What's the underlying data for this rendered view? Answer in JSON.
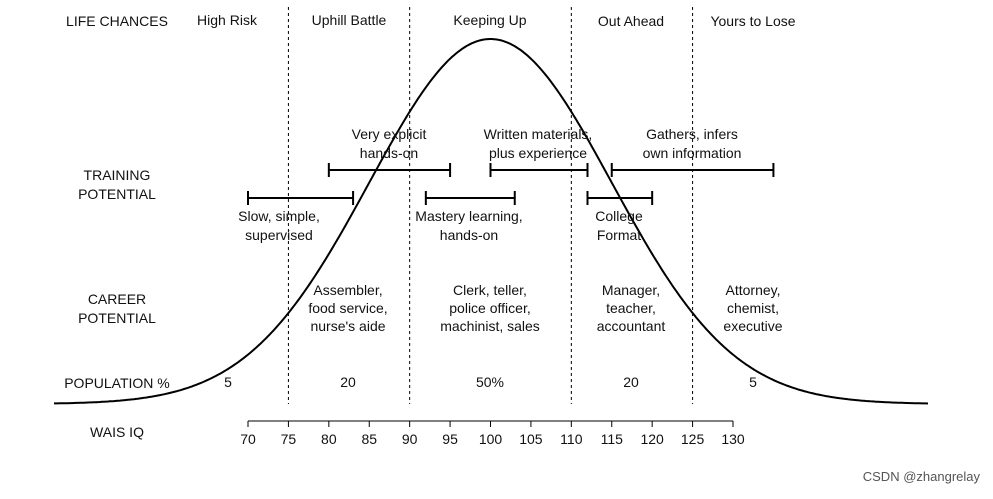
{
  "row_labels": {
    "life_chances": "LIFE CHANCES",
    "training_1": "TRAINING",
    "training_2": "POTENTIAL",
    "career_1": "CAREER",
    "career_2": "POTENTIAL",
    "population": "POPULATION %",
    "wais": "WAIS IQ"
  },
  "life_chances": [
    "High Risk",
    "Uphill Battle",
    "Keeping Up",
    "Out Ahead",
    "Yours to Lose"
  ],
  "training": [
    {
      "lines": [
        "Slow, simple,",
        "supervised"
      ],
      "from": 70,
      "to": 83
    },
    {
      "lines": [
        "Very explicit",
        "hands-on"
      ],
      "from": 80,
      "to": 95
    },
    {
      "lines": [
        "Mastery learning,",
        "hands-on"
      ],
      "from": 92,
      "to": 103
    },
    {
      "lines": [
        "Written materials,",
        "plus experience"
      ],
      "from": 100,
      "to": 112
    },
    {
      "lines": [
        "College",
        "Format"
      ],
      "from": 112,
      "to": 120
    },
    {
      "lines": [
        "Gathers, infers",
        "own information"
      ],
      "from": 115,
      "to": 135
    }
  ],
  "careers": [
    [
      "Assembler,",
      "food service,",
      "nurse's aide"
    ],
    [
      "Clerk, teller,",
      "police officer,",
      "machinist, sales"
    ],
    [
      "Manager,",
      "teacher,",
      "accountant"
    ],
    [
      "Attorney,",
      "chemist,",
      "executive"
    ]
  ],
  "population": [
    "5",
    "20",
    "50%",
    "20",
    "5"
  ],
  "axis": {
    "ticks": [
      70,
      75,
      80,
      85,
      90,
      95,
      100,
      105,
      110,
      115,
      120,
      125,
      130
    ],
    "min": 70,
    "max": 130
  },
  "boundaries": [
    75,
    90,
    110,
    125
  ],
  "curve": {
    "mean": 100,
    "sd": 15
  },
  "watermark": "CSDN @zhangrelay"
}
